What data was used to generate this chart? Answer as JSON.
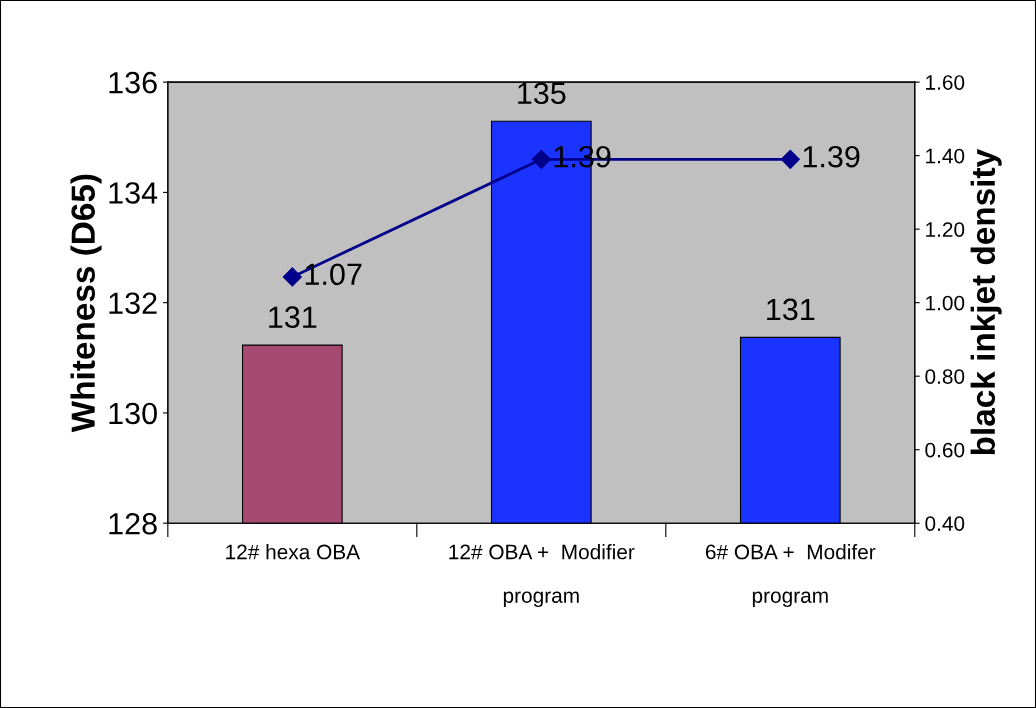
{
  "chart_data": {
    "type": "bar",
    "categories": [
      "12# hexa OBA",
      "12# OBA +  Modifier\nprogram",
      "6# OBA +  Modifer\nprogram"
    ],
    "ylabel": "Whiteness (D65)",
    "y2label": "black inkjet density",
    "ylim": [
      128,
      136
    ],
    "yticks": [
      128,
      130,
      132,
      134,
      136
    ],
    "y2lim": [
      0.4,
      1.6
    ],
    "y2ticks": [
      {
        "value": 0.4,
        "label": "0.40"
      },
      {
        "value": 0.6,
        "label": "0.60"
      },
      {
        "value": 0.8,
        "label": "0.80"
      },
      {
        "value": 1.0,
        "label": "1.00"
      },
      {
        "value": 1.2,
        "label": "1.20"
      },
      {
        "value": 1.4,
        "label": "1.40"
      },
      {
        "value": 1.6,
        "label": "1.60"
      }
    ],
    "series": [
      {
        "colors": [
          "#a64a72",
          "#1a33ff",
          "#1a33ff"
        ],
        "values": [
          131.23,
          135.29,
          131.37
        ],
        "value_labels": [
          "131",
          "135",
          "131"
        ]
      },
      {
        "type": "line",
        "axis": "y2",
        "color": "#00008b",
        "marker": "diamond",
        "values": [
          1.07,
          1.39,
          1.39
        ],
        "data_labels": true
      }
    ],
    "grid": false,
    "legend": false
  }
}
